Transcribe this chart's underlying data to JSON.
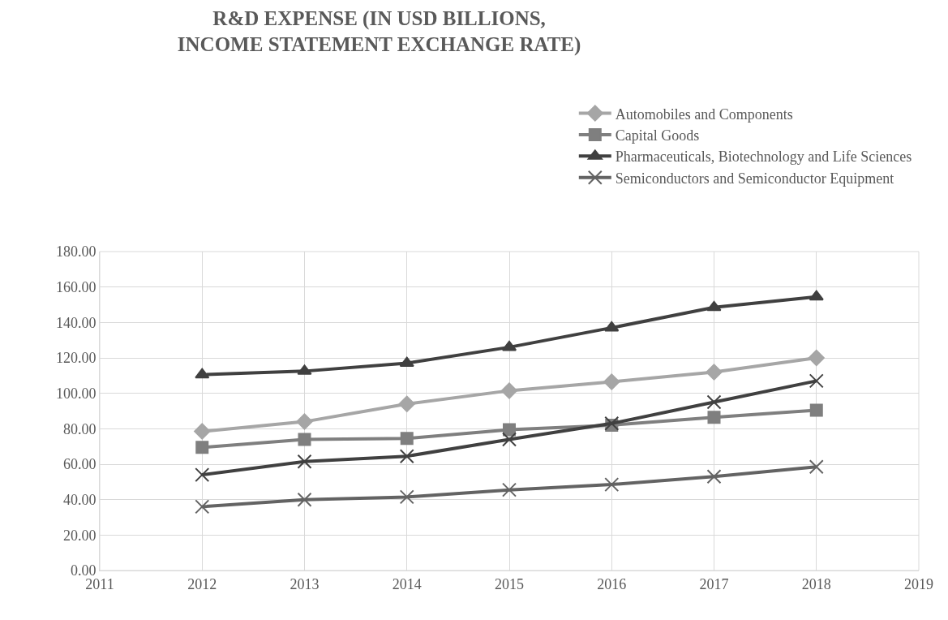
{
  "chart_data": {
    "type": "line",
    "title": "R&D EXPENSE (IN USD BILLIONS, INCOME STATEMENT EXCHANGE RATE)",
    "x": [
      2012,
      2013,
      2014,
      2015,
      2016,
      2017,
      2018
    ],
    "series": [
      {
        "name": "Automobiles and Components",
        "color": "#a6a6a6",
        "marker": "diamond",
        "values": [
          78.5,
          84,
          94,
          101.5,
          106.5,
          112,
          120
        ]
      },
      {
        "name": "Capital Goods",
        "color": "#7f7f7f",
        "marker": "square",
        "values": [
          69.5,
          74,
          74.5,
          79.5,
          82,
          86.5,
          90.5
        ]
      },
      {
        "name": "Pharmaceuticals, Biotechnology and Life Sciences",
        "color": "#404040",
        "marker": "triangle",
        "values": [
          110.5,
          112.5,
          117,
          126,
          137,
          148.5,
          154.5
        ]
      },
      {
        "name": "Semiconductors and Semiconductor Equipment",
        "color": "#636363",
        "marker": "cross",
        "values": [
          36,
          40,
          41.5,
          45.5,
          48.5,
          53,
          58.5
        ]
      },
      {
        "color": "#404040",
        "marker": "cross",
        "values": [
          54,
          61.5,
          64.5,
          74,
          83,
          95,
          107
        ]
      }
    ],
    "xlim": [
      2011,
      2019
    ],
    "xticks": [
      2011,
      2012,
      2013,
      2014,
      2015,
      2016,
      2017,
      2018,
      2019
    ],
    "ylim": [
      0,
      180
    ],
    "yticks": [
      {
        "value": 0,
        "label": "0.00"
      },
      {
        "value": 20,
        "label": "20.00"
      },
      {
        "value": 40,
        "label": "40.00"
      },
      {
        "value": 60,
        "label": "60.00"
      },
      {
        "value": 80,
        "label": "80.00"
      },
      {
        "value": 100,
        "label": "100.00"
      },
      {
        "value": 120,
        "label": "120.00"
      },
      {
        "value": 140,
        "label": "140.00"
      },
      {
        "value": 160,
        "label": "160.00"
      },
      {
        "value": 180,
        "label": "180.00"
      }
    ],
    "grid": true,
    "legend": "top right",
    "line_style": "solid"
  }
}
